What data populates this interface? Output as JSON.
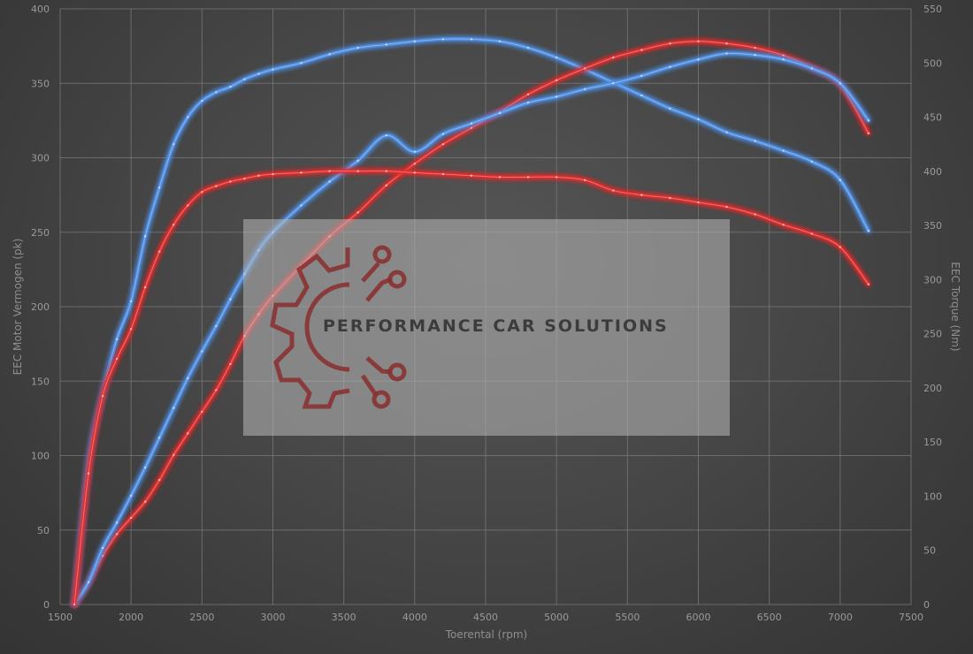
{
  "chart_data": {
    "type": "line",
    "xlabel": "Toerental (rpm)",
    "ylabel_left": "EEC Motor Vermogen (pk)",
    "ylabel_right": "EEC Torque (Nm)",
    "xlim": [
      1500,
      7500
    ],
    "ylim_left": [
      0,
      400
    ],
    "ylim_right": [
      0,
      550
    ],
    "x_ticks": [
      1500,
      2000,
      2500,
      3000,
      3500,
      4000,
      4500,
      5000,
      5500,
      6000,
      6500,
      7000,
      7500
    ],
    "y_ticks_left": [
      0,
      50,
      100,
      150,
      200,
      250,
      300,
      350,
      400
    ],
    "y_ticks_right": [
      0,
      50,
      100,
      150,
      200,
      250,
      300,
      350,
      400,
      450,
      500,
      550
    ],
    "grid": true,
    "legend": "none",
    "series": [
      {
        "axis": "right",
        "color": "#4f8fe6",
        "x": [
          1600,
          1700,
          1800,
          1900,
          2000,
          2100,
          2200,
          2300,
          2400,
          2500,
          2600,
          2700,
          2800,
          2900,
          3000,
          3200,
          3400,
          3600,
          3800,
          4000,
          4200,
          4400,
          4600,
          4800,
          5000,
          5200,
          5400,
          5600,
          5800,
          6000,
          6200,
          6400,
          6600,
          6800,
          7000,
          7200
        ],
        "values": [
          0,
          130,
          195,
          245,
          280,
          340,
          385,
          425,
          450,
          465,
          473,
          478,
          485,
          490,
          494,
          500,
          508,
          514,
          517,
          520,
          522,
          522,
          520,
          514,
          505,
          494,
          482,
          470,
          458,
          448,
          436,
          428,
          419,
          409,
          392,
          345
        ]
      },
      {
        "axis": "right",
        "color": "#e02c2c",
        "x": [
          1600,
          1700,
          1800,
          1900,
          2000,
          2100,
          2200,
          2300,
          2400,
          2500,
          2600,
          2700,
          2800,
          2900,
          3000,
          3200,
          3400,
          3600,
          3800,
          4000,
          4200,
          4400,
          4600,
          4800,
          5000,
          5200,
          5400,
          5600,
          5800,
          6000,
          6200,
          6400,
          6600,
          6800,
          7000,
          7200
        ],
        "values": [
          0,
          20,
          45,
          65,
          80,
          95,
          115,
          138,
          158,
          178,
          198,
          222,
          248,
          268,
          285,
          313,
          340,
          362,
          387,
          407,
          425,
          440,
          455,
          471,
          484,
          495,
          505,
          512,
          518,
          520,
          518,
          514,
          507,
          496,
          480,
          435
        ]
      },
      {
        "axis": "left",
        "color": "#4f8fe6",
        "x": [
          1600,
          1700,
          1800,
          1900,
          2000,
          2100,
          2200,
          2300,
          2400,
          2500,
          2600,
          2700,
          2800,
          2900,
          3000,
          3200,
          3400,
          3600,
          3800,
          4000,
          4200,
          4400,
          4600,
          4800,
          5000,
          5200,
          5400,
          5600,
          5800,
          6000,
          6200,
          6400,
          6600,
          6800,
          7000,
          7200
        ],
        "values": [
          0,
          15,
          38,
          55,
          73,
          92,
          112,
          132,
          152,
          170,
          187,
          205,
          222,
          238,
          250,
          268,
          284,
          298,
          315,
          304,
          316,
          323,
          330,
          337,
          341,
          346,
          350,
          355,
          361,
          366,
          370,
          369,
          366,
          360,
          350,
          325
        ]
      },
      {
        "axis": "left",
        "color": "#e02c2c",
        "x": [
          1600,
          1700,
          1800,
          1900,
          2000,
          2100,
          2200,
          2300,
          2400,
          2500,
          2600,
          2700,
          2800,
          2900,
          3000,
          3200,
          3400,
          3600,
          3800,
          4000,
          4200,
          4400,
          4600,
          4800,
          5000,
          5200,
          5400,
          5600,
          5800,
          6000,
          6200,
          6400,
          6600,
          6800,
          7000,
          7200
        ],
        "values": [
          0,
          88,
          140,
          165,
          185,
          213,
          237,
          255,
          268,
          277,
          281,
          284,
          286,
          288,
          289,
          290,
          291,
          291,
          291,
          290,
          289,
          288,
          287,
          287,
          287,
          285,
          278,
          275,
          273,
          270,
          267,
          262,
          255,
          249,
          240,
          215
        ]
      }
    ]
  },
  "watermark": {
    "text": "PERFORMANCE CAR SOLUTIONS",
    "logo": "gear-circuit-logo"
  }
}
